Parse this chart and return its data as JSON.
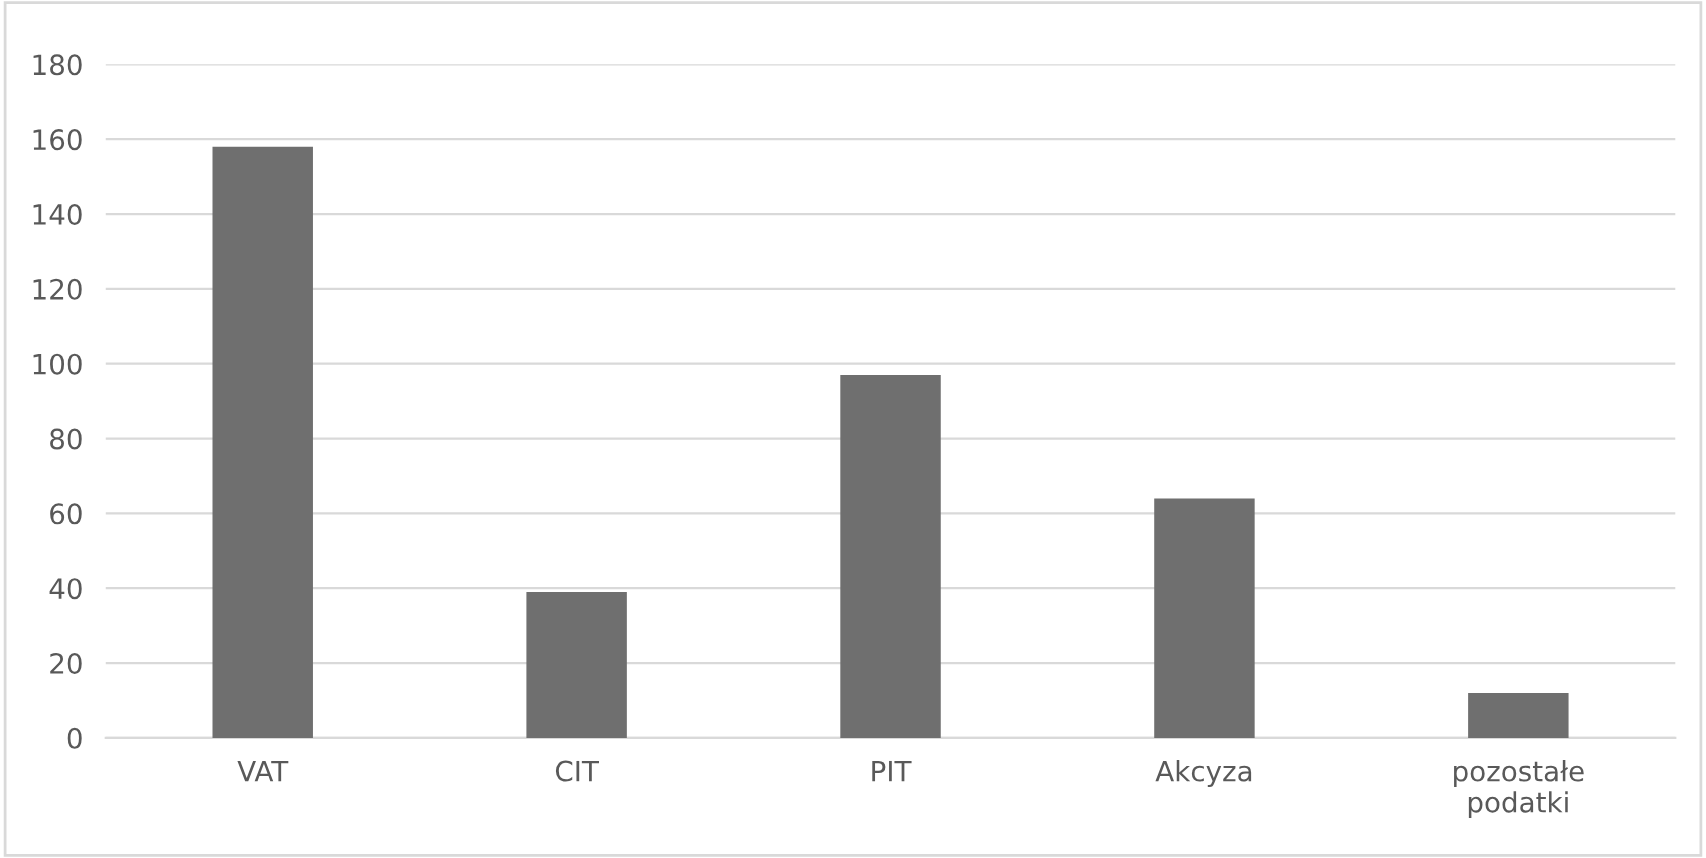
{
  "chart_data": {
    "type": "bar",
    "categories": [
      "VAT",
      "CIT",
      "PIT",
      "Akcyza",
      "pozostałe\npodatki"
    ],
    "values": [
      158,
      39,
      97,
      64,
      12
    ],
    "color": "#6f6f6f",
    "ylim": [
      0,
      180
    ],
    "yticks": [
      0,
      20,
      40,
      60,
      80,
      100,
      120,
      140,
      160,
      180
    ],
    "grid": "y",
    "legend": false
  }
}
